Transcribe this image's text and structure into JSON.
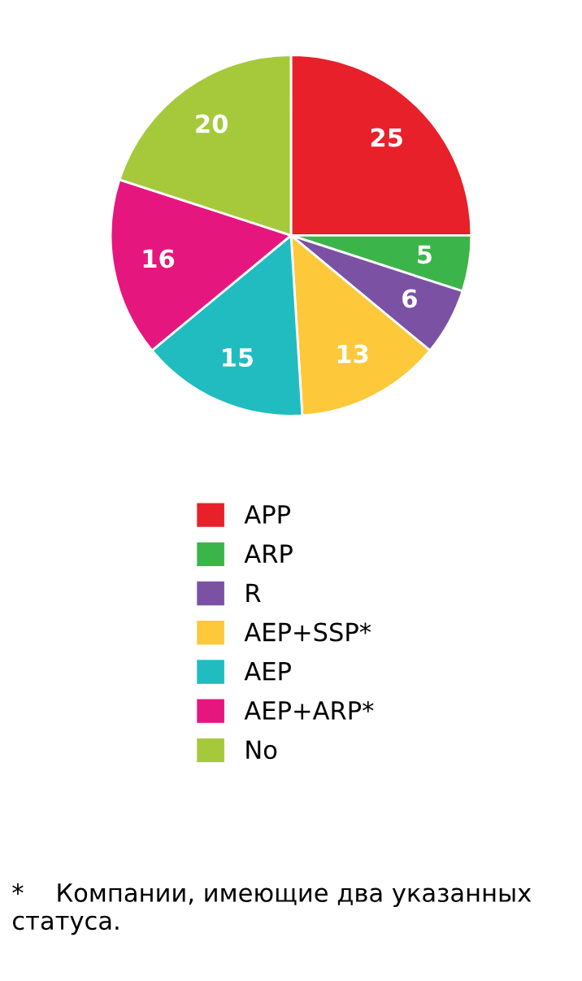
{
  "chart_data": {
    "type": "pie",
    "categories": [
      "APP",
      "ARP",
      "R",
      "AEP+SSP*",
      "AEP",
      "AEP+ARP*",
      "No"
    ],
    "values": [
      25,
      5,
      6,
      13,
      15,
      16,
      20
    ],
    "colors": [
      "#e8202a",
      "#3bb54a",
      "#7b52a3",
      "#fdc93a",
      "#20bcc0",
      "#e5177f",
      "#a6c93c"
    ],
    "data_labels": true,
    "legend": "bottom",
    "annotations": [
      "*    Компании, имеющие два указанных статуса."
    ]
  }
}
